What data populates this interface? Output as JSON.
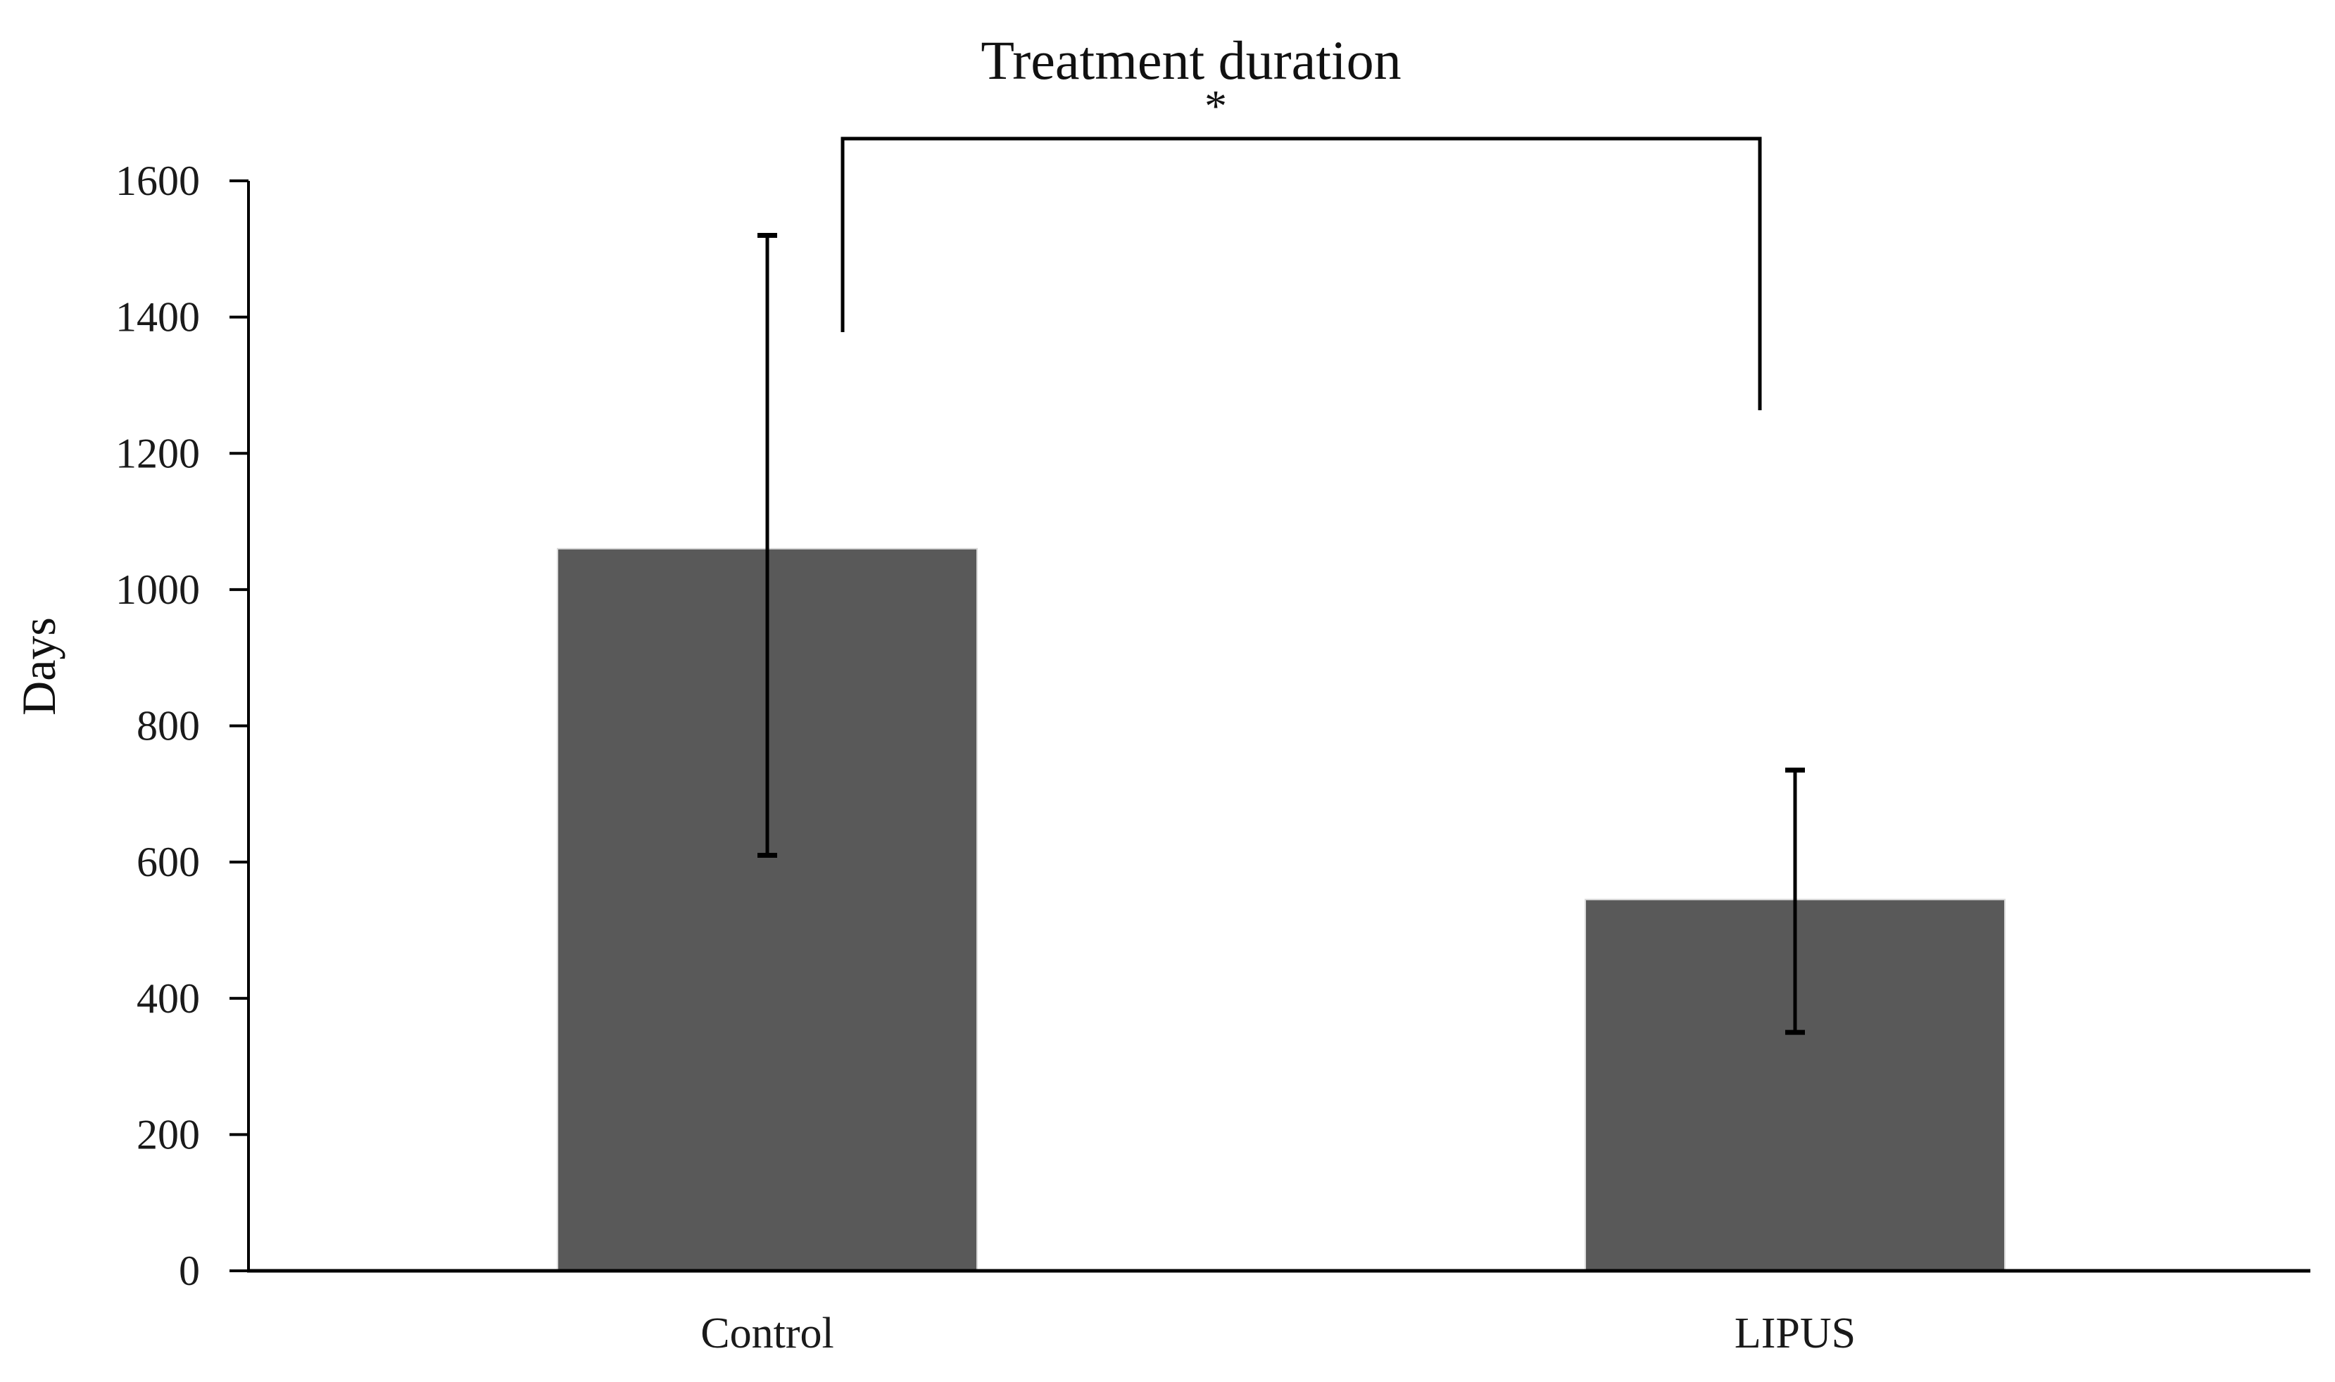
{
  "chart_data": {
    "type": "bar",
    "title": "Treatment duration",
    "xlabel": "",
    "ylabel": "Days",
    "categories": [
      "Control",
      "LIPUS"
    ],
    "values": [
      1060,
      545
    ],
    "error_bars": [
      {
        "category": "Control",
        "upper_end": 1520,
        "lower_end": 610
      },
      {
        "category": "LIPUS",
        "upper_end": 735,
        "lower_end": 350
      }
    ],
    "ylim": [
      0,
      1600
    ],
    "ytick_step": 200,
    "ytick_labels": [
      "0",
      "200",
      "400",
      "600",
      "800",
      "1000",
      "1200",
      "1400",
      "1600"
    ],
    "grid": false,
    "legend": false,
    "background_color": "#ffffff",
    "bar_color": "#595959",
    "axis_color": "#000000",
    "significance": {
      "label": "*",
      "between": [
        "Control",
        "LIPUS"
      ]
    }
  }
}
